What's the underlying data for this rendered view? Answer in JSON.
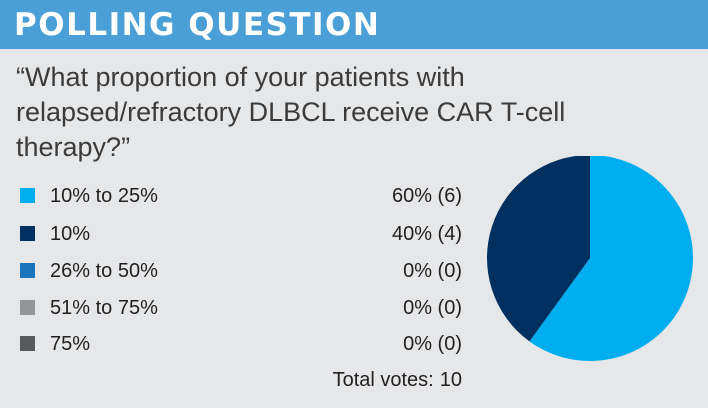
{
  "header": {
    "title": "POLLING QUESTION"
  },
  "question": "“What proportion of your patients with relapsed/refractory DLBCL receive CAR T-cell therapy?”",
  "chart_data": {
    "type": "pie",
    "title": "",
    "categories": [
      "10% to 25%",
      "10%",
      "26% to 50%",
      "51% to 75%",
      "75%"
    ],
    "values": [
      6,
      4,
      0,
      0,
      0
    ],
    "display": [
      "60% (6)",
      "40% (4)",
      "0% (0)",
      "0% (0)",
      "0% (0)"
    ],
    "colors": [
      "#00aeef",
      "#00305f",
      "#1b75bc",
      "#939598",
      "#58595b"
    ],
    "legend": "left",
    "total_label": "Total votes:",
    "total_value": "10"
  }
}
